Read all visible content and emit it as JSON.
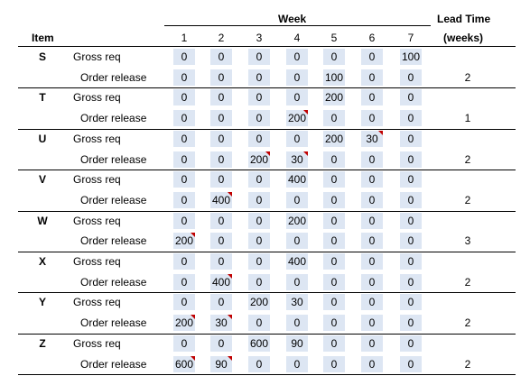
{
  "header": {
    "item": "Item",
    "week": "Week",
    "lead_time": "Lead Time",
    "lead_time_unit": "(weeks)",
    "weeks": [
      "1",
      "2",
      "3",
      "4",
      "5",
      "6",
      "7"
    ]
  },
  "accent": {
    "cell_fill": "#dde6f3",
    "comment_marker": "#c00000"
  },
  "items": [
    {
      "name": "S",
      "gross_label": "Gross req",
      "gross": [
        "0",
        "0",
        "0",
        "0",
        "0",
        "0",
        "100"
      ],
      "gross_comments": [],
      "order_label": "Order release",
      "order": [
        "0",
        "0",
        "0",
        "0",
        "100",
        "0",
        "0"
      ],
      "order_comments": [],
      "lead_time": "2"
    },
    {
      "name": "T",
      "gross_label": "Gross req",
      "gross": [
        "0",
        "0",
        "0",
        "0",
        "200",
        "0",
        "0"
      ],
      "gross_comments": [],
      "order_label": "Order release",
      "order": [
        "0",
        "0",
        "0",
        "200",
        "0",
        "0",
        "0"
      ],
      "order_comments": [
        3
      ],
      "lead_time": "1"
    },
    {
      "name": "U",
      "gross_label": "Gross req",
      "gross": [
        "0",
        "0",
        "0",
        "0",
        "200",
        "30",
        "0"
      ],
      "gross_comments": [
        5
      ],
      "order_label": "Order release",
      "order": [
        "0",
        "0",
        "200",
        "30",
        "0",
        "0",
        "0"
      ],
      "order_comments": [
        2,
        3
      ],
      "lead_time": "2"
    },
    {
      "name": "V",
      "gross_label": "Gross req",
      "gross": [
        "0",
        "0",
        "0",
        "400",
        "0",
        "0",
        "0"
      ],
      "gross_comments": [],
      "order_label": "Order release",
      "order": [
        "0",
        "400",
        "0",
        "0",
        "0",
        "0",
        "0"
      ],
      "order_comments": [
        1
      ],
      "lead_time": "2"
    },
    {
      "name": "W",
      "gross_label": "Gross req",
      "gross": [
        "0",
        "0",
        "0",
        "200",
        "0",
        "0",
        "0"
      ],
      "gross_comments": [],
      "order_label": "Order release",
      "order": [
        "200",
        "0",
        "0",
        "0",
        "0",
        "0",
        "0"
      ],
      "order_comments": [
        0
      ],
      "lead_time": "3"
    },
    {
      "name": "X",
      "gross_label": "Gross req",
      "gross": [
        "0",
        "0",
        "0",
        "400",
        "0",
        "0",
        "0"
      ],
      "gross_comments": [],
      "order_label": "Order release",
      "order": [
        "0",
        "400",
        "0",
        "0",
        "0",
        "0",
        "0"
      ],
      "order_comments": [
        1
      ],
      "lead_time": "2"
    },
    {
      "name": "Y",
      "gross_label": "Gross req",
      "gross": [
        "0",
        "0",
        "200",
        "30",
        "0",
        "0",
        "0"
      ],
      "gross_comments": [],
      "order_label": "Order release",
      "order": [
        "200",
        "30",
        "0",
        "0",
        "0",
        "0",
        "0"
      ],
      "order_comments": [
        0,
        1
      ],
      "lead_time": "2"
    },
    {
      "name": "Z",
      "gross_label": "Gross req",
      "gross": [
        "0",
        "0",
        "600",
        "90",
        "0",
        "0",
        "0"
      ],
      "gross_comments": [],
      "order_label": "Order release",
      "order": [
        "600",
        "90",
        "0",
        "0",
        "0",
        "0",
        "0"
      ],
      "order_comments": [
        0,
        1
      ],
      "lead_time": "2"
    }
  ]
}
